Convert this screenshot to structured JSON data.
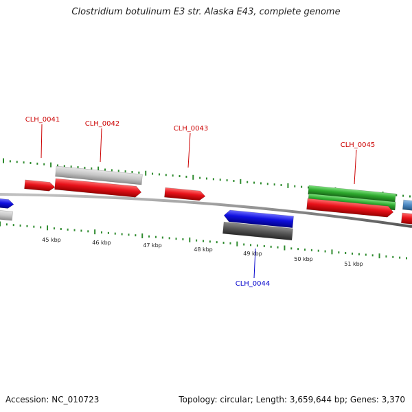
{
  "title": "Clostridium botulinum E3 str. Alaska E43, complete genome",
  "footer": {
    "accession": "Accession: NC_010723",
    "summary": "Topology: circular; Length: 3,659,644 bp; Genes: 3,370"
  },
  "colors": {
    "backbone": "#8a8a8a",
    "tick": "#2e8b2e",
    "forward_label": "#cc0000",
    "reverse_label": "#0000cc",
    "red": "#e8121a",
    "grey_light": "#c8c8c8",
    "grey_dark": "#555555",
    "blue": "#1010e0",
    "green": "#2eaa2e",
    "steel": "#4a86c0"
  },
  "scale_labels": [
    "45 kbp",
    "46 kbp",
    "47 kbp",
    "48 kbp",
    "49 kbp",
    "50 kbp",
    "51 kbp"
  ],
  "gene_labels": [
    {
      "text": "CLH_0041",
      "strand": "forward"
    },
    {
      "text": "CLH_0042",
      "strand": "forward"
    },
    {
      "text": "CLH_0043",
      "strand": "forward"
    },
    {
      "text": "CLH_0044",
      "strand": "reverse"
    },
    {
      "text": "CLH_0045",
      "strand": "forward"
    }
  ]
}
